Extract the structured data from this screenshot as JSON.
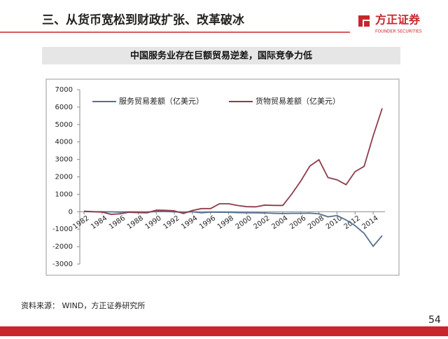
{
  "header": {
    "title": "三、从货币宽松到财政扩张、改革破冰",
    "logo": "方正证券",
    "logo_sub": "FOUNDER SECURITIES"
  },
  "chart_data": {
    "type": "line",
    "title": "中国服务业存在巨额贸易逆差，国际竞争力低",
    "x": [
      1982,
      1983,
      1984,
      1985,
      1986,
      1987,
      1988,
      1989,
      1990,
      1991,
      1992,
      1993,
      1994,
      1995,
      1996,
      1997,
      1998,
      1999,
      2000,
      2001,
      2002,
      2003,
      2004,
      2005,
      2006,
      2007,
      2008,
      2009,
      2010,
      2011,
      2012,
      2013,
      2014,
      2015
    ],
    "series": [
      {
        "name": "服务贸易差额（亿美元）",
        "color": "#56708f",
        "values": [
          6,
          3,
          0,
          -8,
          -20,
          -10,
          -15,
          -10,
          10,
          20,
          -5,
          -30,
          0,
          -60,
          -20,
          -30,
          -30,
          -50,
          -60,
          -60,
          -70,
          -90,
          -100,
          -90,
          -90,
          -80,
          -120,
          -290,
          -220,
          -470,
          -800,
          -1240,
          -1980,
          -1370
        ]
      },
      {
        "name": "货物贸易差额（亿美元）",
        "color": "#8e3b4b",
        "values": [
          30,
          0,
          -20,
          -150,
          -120,
          -30,
          -50,
          -60,
          90,
          80,
          50,
          -100,
          70,
          180,
          180,
          460,
          460,
          360,
          290,
          280,
          380,
          360,
          360,
          1020,
          1770,
          2620,
          2980,
          1960,
          1830,
          1550,
          2300,
          2600,
          4350,
          5930
        ]
      }
    ],
    "xlim": [
      1982,
      2015
    ],
    "xticks": [
      1982,
      1984,
      1986,
      1988,
      1990,
      1992,
      1994,
      1996,
      1998,
      2000,
      2002,
      2004,
      2006,
      2008,
      2010,
      2012,
      2014
    ],
    "ylim": [
      -3000,
      7000
    ],
    "yticks": [
      -3000,
      -2000,
      -1000,
      0,
      1000,
      2000,
      3000,
      4000,
      5000,
      6000,
      7000
    ],
    "grid": false
  },
  "footer": {
    "source": "资料来源： WIND，方正证券研究所",
    "page": "54"
  }
}
